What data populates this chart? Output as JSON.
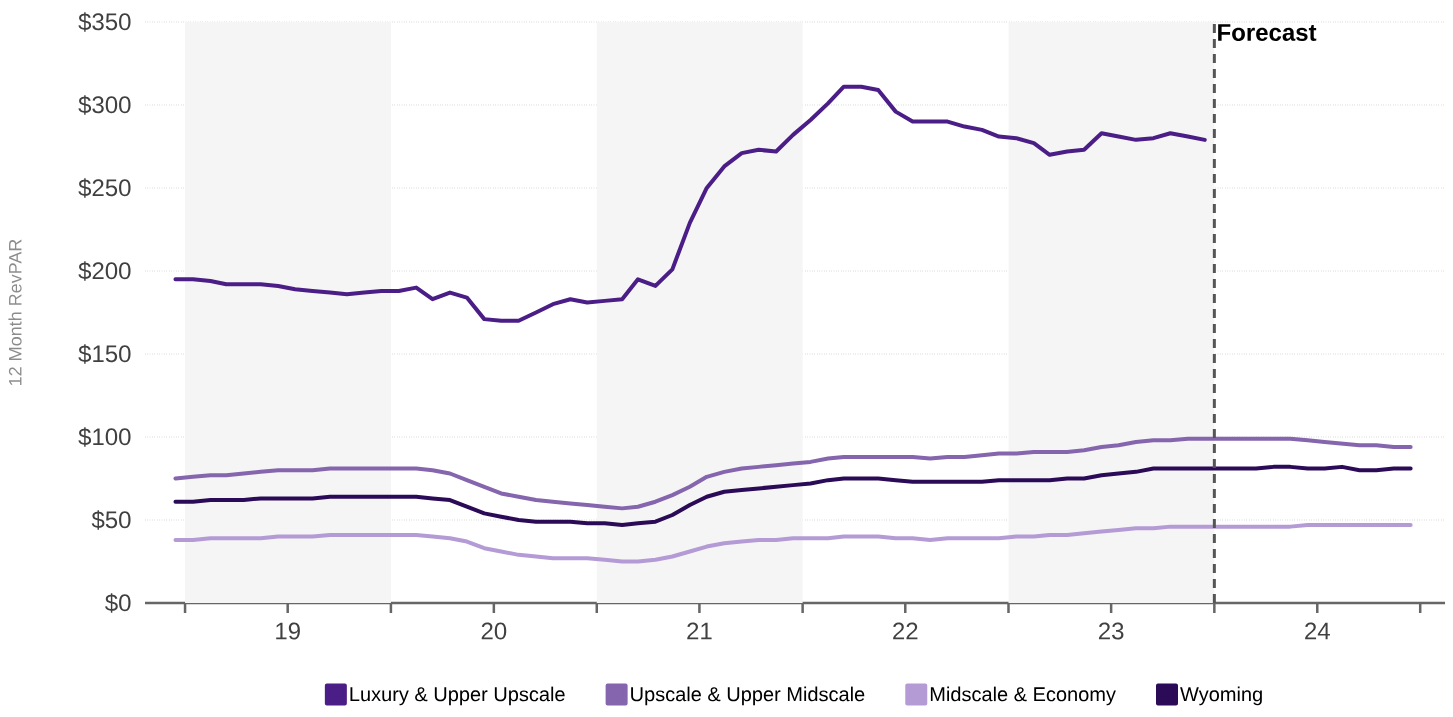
{
  "chart_data": {
    "type": "line",
    "ylabel": "12 Month RevPAR",
    "x": [
      "2018-12-15",
      "2019-01-15",
      "2019-02-15",
      "2019-03-15",
      "2019-04-15",
      "2019-05-15",
      "2019-06-15",
      "2019-07-15",
      "2019-08-15",
      "2019-09-15",
      "2019-10-15",
      "2019-11-15",
      "2019-12-15",
      "2020-01-15",
      "2020-02-15",
      "2020-03-15",
      "2020-04-15",
      "2020-05-15",
      "2020-06-15",
      "2020-07-15",
      "2020-08-15",
      "2020-09-15",
      "2020-10-15",
      "2020-11-15",
      "2020-12-15",
      "2021-01-15",
      "2021-02-15",
      "2021-03-15",
      "2021-04-15",
      "2021-05-15",
      "2021-06-15",
      "2021-07-15",
      "2021-08-15",
      "2021-09-15",
      "2021-10-15",
      "2021-11-15",
      "2021-12-15",
      "2022-01-15",
      "2022-02-15",
      "2022-03-15",
      "2022-04-15",
      "2022-05-15",
      "2022-06-15",
      "2022-07-15",
      "2022-08-15",
      "2022-09-15",
      "2022-10-15",
      "2022-11-15",
      "2022-12-15",
      "2023-01-15",
      "2023-02-15",
      "2023-03-15",
      "2023-04-15",
      "2023-05-15",
      "2023-06-15",
      "2023-07-15",
      "2023-08-15",
      "2023-09-15",
      "2023-10-15",
      "2023-11-15",
      "2023-12-15",
      "2024-01-15",
      "2024-02-15",
      "2024-03-15",
      "2024-04-15",
      "2024-05-15",
      "2024-06-15",
      "2024-07-15",
      "2024-08-15",
      "2024-09-15",
      "2024-10-15",
      "2024-11-15",
      "2024-12-15"
    ],
    "series": [
      {
        "name": "Luxury & Upper Upscale",
        "color": "#4b1d86",
        "values": [
          195,
          195,
          194,
          192,
          192,
          192,
          191,
          189,
          188,
          187,
          186,
          187,
          188,
          188,
          190,
          183,
          187,
          184,
          171,
          170,
          170,
          175,
          180,
          183,
          181,
          182,
          183,
          195,
          191,
          201,
          229,
          250,
          263,
          271,
          273,
          272,
          282,
          291,
          301,
          311,
          311,
          309,
          296,
          290,
          290,
          290,
          287,
          285,
          281,
          280,
          277,
          270,
          272,
          273,
          283,
          281,
          279,
          280,
          283,
          281,
          279,
          null,
          null,
          null,
          null,
          null,
          null,
          null,
          null,
          null,
          null,
          null,
          null
        ]
      },
      {
        "name": "Upscale & Upper Midscale",
        "color": "#8565ad",
        "values": [
          75,
          76,
          77,
          77,
          78,
          79,
          80,
          80,
          80,
          81,
          81,
          81,
          81,
          81,
          81,
          80,
          78,
          74,
          70,
          66,
          64,
          62,
          61,
          60,
          59,
          58,
          57,
          58,
          61,
          65,
          70,
          76,
          79,
          81,
          82,
          83,
          84,
          85,
          87,
          88,
          88,
          88,
          88,
          88,
          87,
          88,
          88,
          89,
          90,
          90,
          91,
          91,
          91,
          92,
          94,
          95,
          97,
          98,
          98,
          99,
          99,
          99,
          99,
          99,
          99,
          99,
          98,
          97,
          96,
          95,
          95,
          94,
          94
        ]
      },
      {
        "name": "Midscale & Economy",
        "color": "#b49bd5",
        "values": [
          38,
          38,
          39,
          39,
          39,
          39,
          40,
          40,
          40,
          41,
          41,
          41,
          41,
          41,
          41,
          40,
          39,
          37,
          33,
          31,
          29,
          28,
          27,
          27,
          27,
          26,
          25,
          25,
          26,
          28,
          31,
          34,
          36,
          37,
          38,
          38,
          39,
          39,
          39,
          40,
          40,
          40,
          39,
          39,
          38,
          39,
          39,
          39,
          39,
          40,
          40,
          41,
          41,
          42,
          43,
          44,
          45,
          45,
          46,
          46,
          46,
          46,
          46,
          46,
          46,
          46,
          47,
          47,
          47,
          47,
          47,
          47,
          47
        ]
      },
      {
        "name": "Wyoming",
        "color": "#2b0b57",
        "values": [
          61,
          61,
          62,
          62,
          62,
          63,
          63,
          63,
          63,
          64,
          64,
          64,
          64,
          64,
          64,
          63,
          62,
          58,
          54,
          52,
          50,
          49,
          49,
          49,
          48,
          48,
          47,
          48,
          49,
          53,
          59,
          64,
          67,
          68,
          69,
          70,
          71,
          72,
          74,
          75,
          75,
          75,
          74,
          73,
          73,
          73,
          73,
          73,
          74,
          74,
          74,
          74,
          75,
          75,
          77,
          78,
          79,
          81,
          81,
          81,
          81,
          81,
          81,
          81,
          82,
          82,
          81,
          81,
          82,
          80,
          80,
          81,
          81
        ]
      }
    ],
    "xlim": [
      "2018-10-22",
      "2025-02-14"
    ],
    "xticks": [
      {
        "value": "2019-01-01",
        "label": null
      },
      {
        "value": "2019-07-02",
        "label": "19"
      },
      {
        "value": "2020-01-01",
        "label": null
      },
      {
        "value": "2020-07-02",
        "label": "20"
      },
      {
        "value": "2021-01-01",
        "label": null
      },
      {
        "value": "2021-07-02",
        "label": "21"
      },
      {
        "value": "2022-01-01",
        "label": null
      },
      {
        "value": "2022-07-02",
        "label": "22"
      },
      {
        "value": "2023-01-01",
        "label": null
      },
      {
        "value": "2023-07-02",
        "label": "23"
      },
      {
        "value": "2024-01-01",
        "label": null
      },
      {
        "value": "2024-07-02",
        "label": "24"
      },
      {
        "value": "2025-01-01",
        "label": null
      }
    ],
    "ylim": [
      0,
      350
    ],
    "yticks": [
      {
        "value": 0,
        "label": "$0"
      },
      {
        "value": 50,
        "label": "$50"
      },
      {
        "value": 100,
        "label": "$100"
      },
      {
        "value": 150,
        "label": "$150"
      },
      {
        "value": 200,
        "label": "$200"
      },
      {
        "value": 250,
        "label": "$250"
      },
      {
        "value": 300,
        "label": "$300"
      },
      {
        "value": 350,
        "label": "$350"
      }
    ],
    "grid": "y",
    "bands": [
      {
        "axis": "x",
        "from": "2019-01-01",
        "to": "2020-01-01",
        "color": "#f5f5f5"
      },
      {
        "axis": "x",
        "from": "2021-01-01",
        "to": "2022-01-01",
        "color": "#f5f5f5"
      },
      {
        "axis": "x",
        "from": "2023-01-01",
        "to": "2024-01-01",
        "color": "#f5f5f5"
      }
    ],
    "ref_lines": [
      {
        "axis": "x",
        "value": "2024-01-01",
        "label": "Forecast",
        "color": "#555555",
        "line_style": "dashed"
      }
    ],
    "legend": "bottom"
  }
}
